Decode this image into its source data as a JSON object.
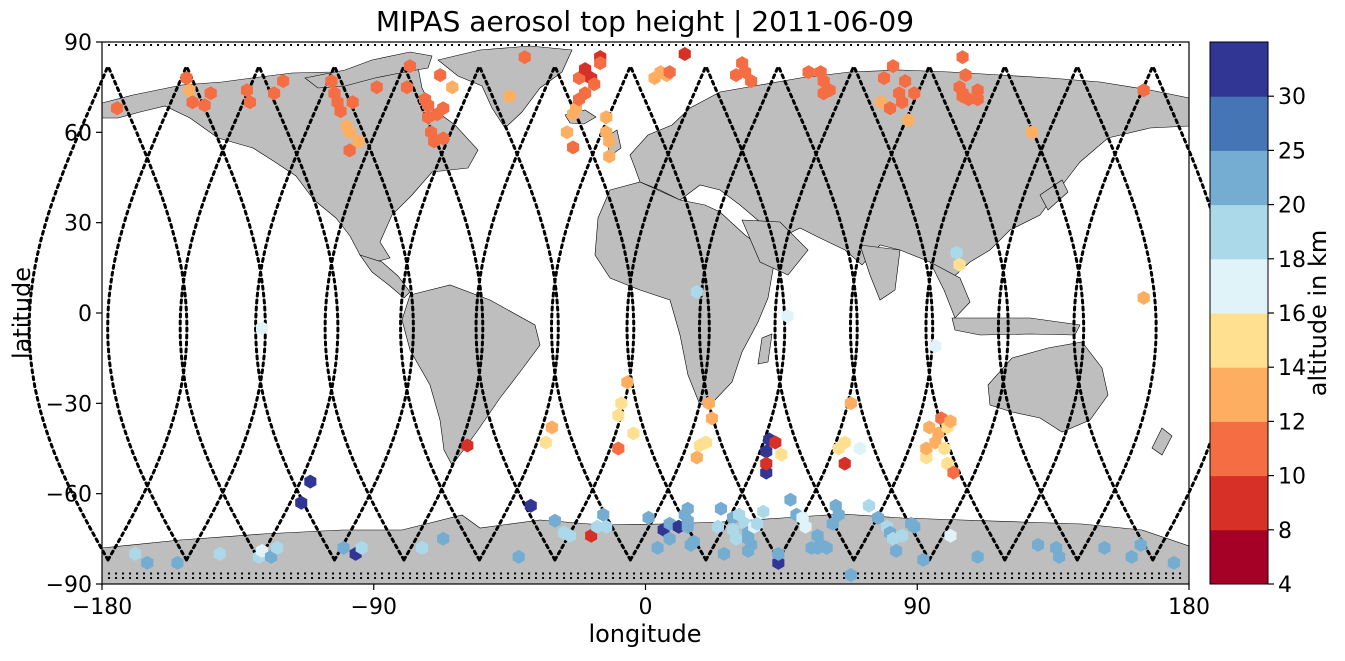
{
  "chart_data": {
    "type": "scatter",
    "title": "MIPAS aerosol top height | 2011-06-09",
    "xlabel": "longitude",
    "ylabel": "latitude",
    "xlim": [
      -180,
      180
    ],
    "ylim": [
      -90,
      90
    ],
    "xticks": [
      -180,
      -90,
      0,
      90,
      180
    ],
    "yticks": [
      -90,
      -60,
      -30,
      0,
      30,
      60,
      90
    ],
    "xtick_labels": [
      "−180",
      "−90",
      "0",
      "90",
      "180"
    ],
    "ytick_labels": [
      "−90",
      "−60",
      "−30",
      "0",
      "30",
      "60",
      "90"
    ],
    "grid": false,
    "background_map": "world coastlines, land filled grey",
    "colorbar": {
      "label": "altitude in km",
      "boundaries": [
        4,
        8,
        10,
        12,
        14,
        16,
        18,
        20,
        25,
        30
      ],
      "tick_labels": [
        "4",
        "8",
        "10",
        "12",
        "14",
        "16",
        "18",
        "20",
        "25",
        "30"
      ],
      "colors": [
        "#a50026",
        "#d73027",
        "#f46d43",
        "#fdae61",
        "#fee090",
        "#e0f3f8",
        "#abd9e9",
        "#74add1",
        "#4575b4",
        "#313695"
      ],
      "colormap": "RdYlBu (discrete)"
    },
    "colors": {
      "land": "#bebebe",
      "coast": "#000000",
      "track": "#000000"
    },
    "orbit_tracks_description": "black dotted MIPAS measurement tracks",
    "points": [
      [
        -175,
        68,
        10
      ],
      [
        -169,
        -80,
        18
      ],
      [
        -165,
        -83,
        20
      ],
      [
        -155,
        -83,
        20
      ],
      [
        -152,
        78,
        10
      ],
      [
        -151,
        74,
        12
      ],
      [
        -150,
        70,
        10
      ],
      [
        -146,
        69,
        10
      ],
      [
        -144,
        73,
        10
      ],
      [
        -141,
        -80,
        18
      ],
      [
        -132,
        74,
        10
      ],
      [
        -131,
        70,
        10
      ],
      [
        -128,
        -81,
        18
      ],
      [
        -127,
        -79,
        17
      ],
      [
        -127,
        -5,
        17
      ],
      [
        -124,
        -81,
        20
      ],
      [
        -123,
        73,
        10
      ],
      [
        -122,
        -78,
        18
      ],
      [
        -120,
        77,
        10
      ],
      [
        -114,
        -63,
        30
      ],
      [
        -111,
        -56,
        30
      ],
      [
        -104,
        77,
        10
      ],
      [
        -103,
        73,
        10
      ],
      [
        -102,
        70,
        10
      ],
      [
        -101,
        67,
        10
      ],
      [
        -100,
        -78,
        20
      ],
      [
        -99,
        62,
        12
      ],
      [
        -98,
        60,
        12
      ],
      [
        -98,
        54,
        10
      ],
      [
        -97,
        70,
        10
      ],
      [
        -96,
        -80,
        30
      ],
      [
        -95,
        57,
        12
      ],
      [
        -94,
        -78,
        18
      ],
      [
        -89,
        75,
        10
      ],
      [
        -79,
        75,
        10
      ],
      [
        -78,
        82,
        10
      ],
      [
        -74,
        -78,
        18
      ],
      [
        -73,
        71,
        10
      ],
      [
        -72,
        69,
        10
      ],
      [
        -72,
        65,
        10
      ],
      [
        -71,
        60,
        10
      ],
      [
        -70,
        57,
        10
      ],
      [
        -69,
        66,
        10
      ],
      [
        -68,
        79,
        10
      ],
      [
        -67,
        68,
        10
      ],
      [
        -67,
        58,
        10
      ],
      [
        -67,
        -75,
        20
      ],
      [
        -64,
        75,
        12
      ],
      [
        -59,
        -44,
        8
      ],
      [
        -45,
        72,
        12
      ],
      [
        -42,
        -81,
        20
      ],
      [
        -40,
        85,
        10
      ],
      [
        -38,
        -64,
        30
      ],
      [
        -33,
        -43,
        14
      ],
      [
        -31,
        -38,
        12
      ],
      [
        -30,
        -69,
        20
      ],
      [
        -27,
        -73,
        18
      ],
      [
        -26,
        60,
        12
      ],
      [
        -25,
        -74,
        18
      ],
      [
        -24,
        55,
        10
      ],
      [
        -24,
        66,
        12
      ],
      [
        -23,
        68,
        12
      ],
      [
        -22,
        71,
        10
      ],
      [
        -22,
        78,
        10
      ],
      [
        -20,
        73,
        10
      ],
      [
        -20,
        81,
        8
      ],
      [
        -18,
        -74,
        8
      ],
      [
        -18,
        78,
        8
      ],
      [
        -17,
        76,
        10
      ],
      [
        -16,
        -71,
        18
      ],
      [
        -15,
        85,
        8
      ],
      [
        -15,
        83,
        10
      ],
      [
        -14,
        -67,
        20
      ],
      [
        -13,
        -71,
        18
      ],
      [
        -13,
        65,
        12
      ],
      [
        -13,
        60,
        12
      ],
      [
        -12,
        57,
        12
      ],
      [
        -12,
        52,
        12
      ],
      [
        -9,
        -45,
        10
      ],
      [
        -9,
        -34,
        14
      ],
      [
        -8,
        -30,
        14
      ],
      [
        -6,
        -23,
        12
      ],
      [
        -4,
        -40,
        14
      ],
      [
        1,
        -68,
        20
      ],
      [
        3,
        78,
        12
      ],
      [
        4,
        -78,
        20
      ],
      [
        5,
        80,
        12
      ],
      [
        6,
        -72,
        30
      ],
      [
        7,
        79,
        12
      ],
      [
        8,
        -75,
        20
      ],
      [
        8,
        -70,
        20
      ],
      [
        8,
        80,
        10
      ],
      [
        11,
        -71,
        30
      ],
      [
        13,
        -67,
        20
      ],
      [
        13,
        86,
        8
      ],
      [
        14,
        -65,
        20
      ],
      [
        14,
        -69,
        20
      ],
      [
        14,
        -71,
        20
      ],
      [
        15,
        -77,
        20
      ],
      [
        16,
        -76,
        20
      ],
      [
        17,
        7,
        18
      ],
      [
        17,
        -48,
        12
      ],
      [
        18,
        -44,
        14
      ],
      [
        20,
        -43,
        14
      ],
      [
        21,
        -30,
        12
      ],
      [
        22,
        -35,
        12
      ],
      [
        24,
        -71,
        18
      ],
      [
        25,
        -65,
        20
      ],
      [
        26,
        -80,
        20
      ],
      [
        29,
        -68,
        20
      ],
      [
        29,
        -72,
        18
      ],
      [
        30,
        -75,
        18
      ],
      [
        30,
        79,
        10
      ],
      [
        31,
        -67,
        18
      ],
      [
        32,
        83,
        10
      ],
      [
        33,
        80,
        10
      ],
      [
        33,
        -70,
        18
      ],
      [
        34,
        -79,
        20
      ],
      [
        34,
        -75,
        20
      ],
      [
        34,
        -73,
        20
      ],
      [
        35,
        -77,
        20
      ],
      [
        35,
        77,
        10
      ],
      [
        36,
        -71,
        17
      ],
      [
        37,
        -70,
        18
      ],
      [
        39,
        -66,
        18
      ],
      [
        40,
        -53,
        30
      ],
      [
        40,
        -46,
        30
      ],
      [
        40,
        -50,
        8
      ],
      [
        41,
        -42,
        30
      ],
      [
        43,
        -43,
        8
      ],
      [
        44,
        -83,
        30
      ],
      [
        44,
        -80,
        20
      ],
      [
        45,
        -47,
        14
      ],
      [
        47,
        -1,
        17
      ],
      [
        48,
        -62,
        20
      ],
      [
        50,
        -67,
        20
      ],
      [
        52,
        -68,
        17
      ],
      [
        53,
        -71,
        16
      ],
      [
        54,
        80,
        10
      ],
      [
        55,
        -78,
        20
      ],
      [
        57,
        -78,
        20
      ],
      [
        57,
        -74,
        20
      ],
      [
        58,
        80,
        10
      ],
      [
        58,
        -77,
        20
      ],
      [
        59,
        73,
        10
      ],
      [
        59,
        77,
        10
      ],
      [
        60,
        -78,
        20
      ],
      [
        61,
        74,
        10
      ],
      [
        62,
        -70,
        20
      ],
      [
        63,
        -64,
        20
      ],
      [
        64,
        -67,
        20
      ],
      [
        64,
        -45,
        15
      ],
      [
        66,
        -43,
        14
      ],
      [
        66,
        -50,
        8
      ],
      [
        68,
        -87,
        20
      ],
      [
        68,
        -30,
        12
      ],
      [
        71,
        -45,
        16
      ],
      [
        74,
        -64,
        18
      ],
      [
        77,
        -68,
        20
      ],
      [
        78,
        70,
        12
      ],
      [
        79,
        78,
        10
      ],
      [
        80,
        -71,
        18
      ],
      [
        81,
        68,
        10
      ],
      [
        81,
        -73,
        20
      ],
      [
        82,
        82,
        10
      ],
      [
        82,
        -75,
        18
      ],
      [
        83,
        -79,
        20
      ],
      [
        84,
        73,
        10
      ],
      [
        85,
        70,
        10
      ],
      [
        85,
        -74,
        18
      ],
      [
        86,
        77,
        10
      ],
      [
        87,
        64,
        12
      ],
      [
        88,
        -70,
        20
      ],
      [
        89,
        73,
        10
      ],
      [
        89,
        -71,
        20
      ],
      [
        92,
        -82,
        20
      ],
      [
        93,
        -48,
        14
      ],
      [
        93,
        -45,
        12
      ],
      [
        94,
        -38,
        12
      ],
      [
        96,
        -43,
        12
      ],
      [
        96,
        -11,
        17
      ],
      [
        97,
        -40,
        12
      ],
      [
        98,
        -35,
        10
      ],
      [
        99,
        -45,
        15
      ],
      [
        100,
        -50,
        15
      ],
      [
        100,
        -38,
        14
      ],
      [
        101,
        -36,
        12
      ],
      [
        101,
        -74,
        17
      ],
      [
        102,
        -53,
        10
      ],
      [
        103,
        20,
        18
      ],
      [
        104,
        16,
        15
      ],
      [
        104,
        75,
        10
      ],
      [
        105,
        73,
        10
      ],
      [
        105,
        72,
        10
      ],
      [
        105,
        85,
        10
      ],
      [
        106,
        79,
        10
      ],
      [
        107,
        71,
        10
      ],
      [
        110,
        74,
        10
      ],
      [
        110,
        71,
        10
      ],
      [
        110,
        -81,
        20
      ],
      [
        128,
        60,
        12
      ],
      [
        130,
        -77,
        20
      ],
      [
        136,
        -78,
        20
      ],
      [
        137,
        -81,
        20
      ],
      [
        152,
        -78,
        20
      ],
      [
        161,
        -81,
        20
      ],
      [
        164,
        -77,
        20
      ],
      [
        165,
        74,
        10
      ],
      [
        165,
        5,
        12
      ],
      [
        175,
        -83,
        20
      ]
    ]
  }
}
